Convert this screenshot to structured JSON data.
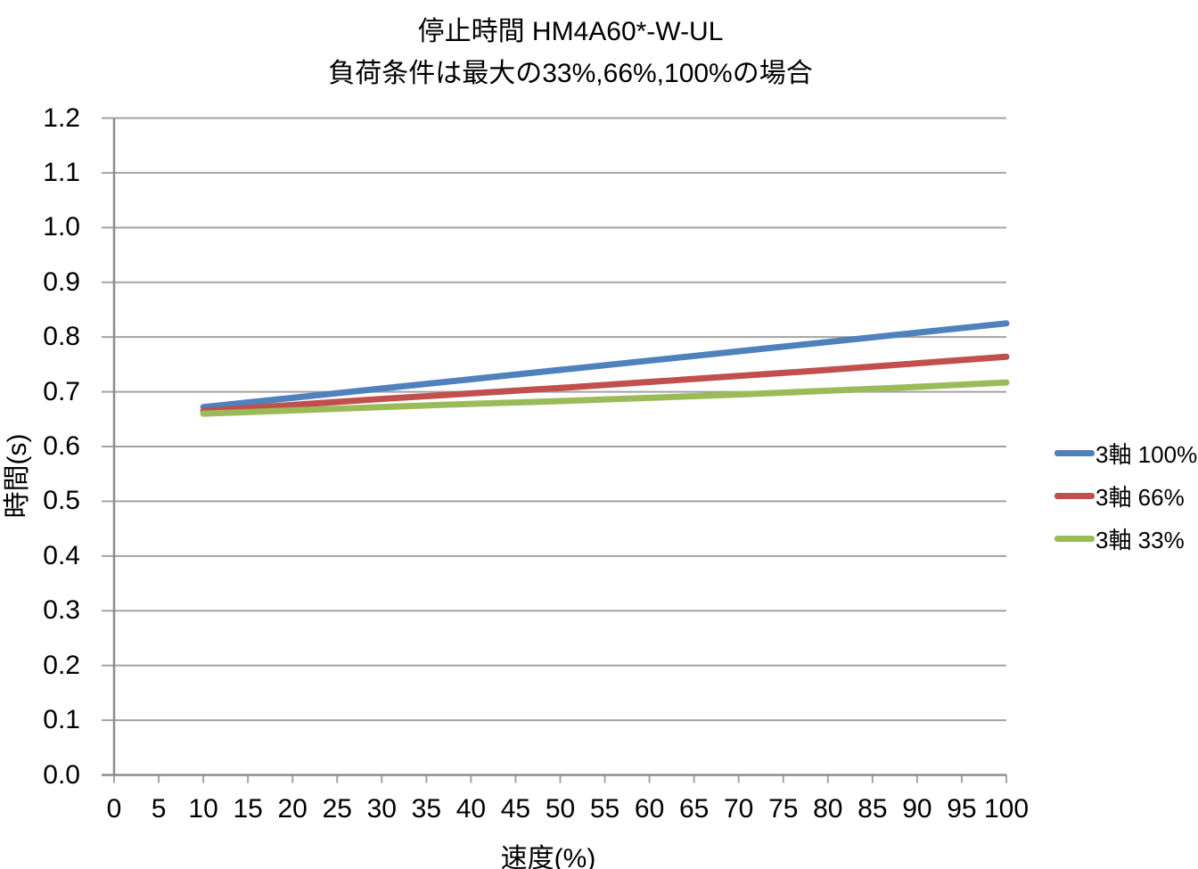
{
  "page": {
    "background": "#ffffff"
  },
  "chart_data": {
    "type": "line",
    "title": "停止時間 HM4A60*-W-UL",
    "subtitle": "負荷条件は最大の33%,66%,100%の場合",
    "xlabel": "速度(%)",
    "ylabel": "時間(s)",
    "xlim": [
      0,
      100
    ],
    "ylim": [
      0.0,
      1.2
    ],
    "xtick_labels": [
      "0",
      "5",
      "10",
      "15",
      "20",
      "25",
      "30",
      "35",
      "40",
      "45",
      "50",
      "55",
      "60",
      "65",
      "70",
      "75",
      "80",
      "85",
      "90",
      "95",
      "100"
    ],
    "xtick_values": [
      0,
      5,
      10,
      15,
      20,
      25,
      30,
      35,
      40,
      45,
      50,
      55,
      60,
      65,
      70,
      75,
      80,
      85,
      90,
      95,
      100
    ],
    "ytick_labels": [
      "0.0",
      "0.1",
      "0.2",
      "0.3",
      "0.4",
      "0.5",
      "0.6",
      "0.7",
      "0.8",
      "0.9",
      "1.0",
      "1.1",
      "1.2"
    ],
    "ytick_values": [
      0.0,
      0.1,
      0.2,
      0.3,
      0.4,
      0.5,
      0.6,
      0.7,
      0.8,
      0.9,
      1.0,
      1.1,
      1.2
    ],
    "grid": "horizontal-only",
    "grid_color": "#A3A3A3",
    "axis_color": "#8C8C8C",
    "legend_position": "right",
    "x": [
      10,
      20,
      30,
      40,
      50,
      60,
      70,
      80,
      90,
      100
    ],
    "series": [
      {
        "name": "3軸 100%",
        "color": "#4F81BD",
        "values": [
          0.672,
          0.689,
          0.706,
          0.723,
          0.74,
          0.757,
          0.774,
          0.791,
          0.808,
          0.825
        ]
      },
      {
        "name": "3軸 66%",
        "color": "#C0504D",
        "values": [
          0.665,
          0.676,
          0.687,
          0.697,
          0.707,
          0.718,
          0.729,
          0.74,
          0.752,
          0.764
        ]
      },
      {
        "name": "3軸 33%",
        "color": "#9BBB59",
        "values": [
          0.66,
          0.666,
          0.672,
          0.678,
          0.683,
          0.689,
          0.695,
          0.702,
          0.709,
          0.717
        ]
      }
    ]
  }
}
